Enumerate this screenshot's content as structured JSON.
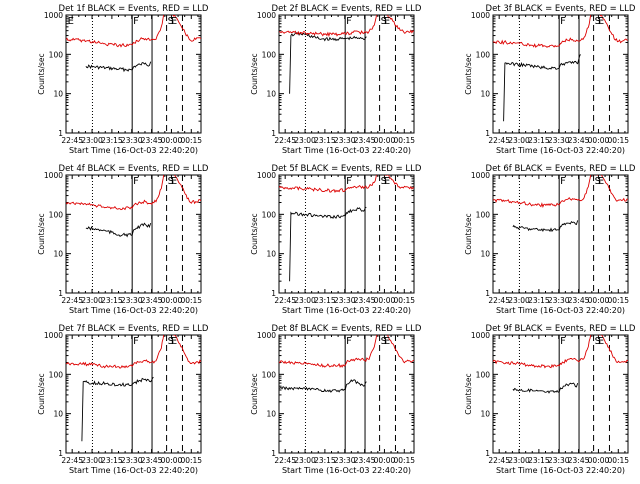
{
  "colors": {
    "events": "#000000",
    "lld": "#dd0000",
    "axis": "#000000",
    "background": "#ffffff"
  },
  "common": {
    "xlabel": "Start Time (16-Oct-03 22:40:20)",
    "ylabel": "Counts/sec",
    "xtick_labels": [
      "22:45",
      "23:00",
      "23:15",
      "23:30",
      "23:45",
      "00:00",
      "00:15"
    ],
    "ytick_labels": [
      "1",
      "10",
      "100",
      "1000"
    ]
  },
  "chart_data": [
    {
      "type": "line",
      "title": "Det 1f BLACK = Events, RED = LLD",
      "x_unit": "minutes since 22:40:20",
      "y_scale": "log",
      "ylim": [
        1,
        1000
      ],
      "xlim": [
        0,
        102
      ],
      "markers": [
        {
          "label": "E",
          "x": 0.5
        },
        {
          "label": "F",
          "x": 50
        },
        {
          "label": "S",
          "x": 76
        },
        {
          "label": "E",
          "x": 78.5
        }
      ],
      "solid_lines_x": [
        50,
        65
      ],
      "dotted_lines_x": [
        20
      ],
      "dashed_lines_x": [
        76,
        88
      ],
      "series": [
        {
          "name": "BLACK = Events",
          "x": [
            15,
            20,
            30,
            40,
            50,
            51,
            56,
            60,
            63,
            64
          ],
          "y": [
            50,
            48,
            45,
            42,
            40,
            48,
            55,
            60,
            52,
            65
          ]
        },
        {
          "name": "RED = LLD",
          "x": [
            0,
            10,
            20,
            30,
            40,
            50,
            51,
            56,
            60,
            64,
            68,
            72,
            74,
            78,
            82,
            86,
            90,
            94,
            98,
            102
          ],
          "y": [
            240,
            230,
            210,
            180,
            170,
            175,
            200,
            240,
            250,
            230,
            240,
            500,
            1100,
            1100,
            1000,
            600,
            350,
            230,
            240,
            250
          ]
        }
      ]
    },
    {
      "type": "line",
      "title": "Det 2f BLACK = Events, RED = LLD",
      "x_unit": "minutes since 22:40:20",
      "y_scale": "log",
      "ylim": [
        1,
        1000
      ],
      "xlim": [
        0,
        102
      ],
      "markers": [
        {
          "label": "F",
          "x": 50
        },
        {
          "label": "S",
          "x": 76
        },
        {
          "label": "E",
          "x": 78.5
        }
      ],
      "solid_lines_x": [
        50,
        65
      ],
      "dotted_lines_x": [
        20
      ],
      "dashed_lines_x": [
        76,
        88
      ],
      "series": [
        {
          "name": "BLACK = Events",
          "x": [
            8,
            9,
            12,
            20,
            30,
            40,
            50,
            56,
            60,
            64,
            66
          ],
          "y": [
            10,
            300,
            330,
            320,
            250,
            240,
            250,
            260,
            260,
            240,
            280
          ]
        },
        {
          "name": "RED = LLD",
          "x": [
            0,
            10,
            20,
            30,
            40,
            50,
            56,
            60,
            64,
            68,
            72,
            74,
            78,
            82,
            86,
            90,
            94,
            98,
            102
          ],
          "y": [
            370,
            360,
            350,
            330,
            320,
            330,
            360,
            380,
            340,
            380,
            550,
            1100,
            1100,
            1000,
            700,
            450,
            380,
            370,
            380
          ]
        }
      ]
    },
    {
      "type": "line",
      "title": "Det 3f BLACK = Events, RED = LLD",
      "x_unit": "minutes since 22:40:20",
      "y_scale": "log",
      "ylim": [
        1,
        1000
      ],
      "xlim": [
        0,
        102
      ],
      "markers": [
        {
          "label": "F",
          "x": 50
        },
        {
          "label": "S",
          "x": 76
        },
        {
          "label": "E",
          "x": 78.5
        }
      ],
      "solid_lines_x": [
        50,
        65
      ],
      "dotted_lines_x": [
        20
      ],
      "dashed_lines_x": [
        76,
        88
      ],
      "series": [
        {
          "name": "BLACK = Events",
          "x": [
            8,
            9,
            12,
            20,
            30,
            40,
            50,
            51,
            56,
            60,
            64,
            66
          ],
          "y": [
            2,
            60,
            58,
            55,
            50,
            45,
            45,
            55,
            60,
            65,
            58,
            100
          ]
        },
        {
          "name": "RED = LLD",
          "x": [
            0,
            10,
            20,
            30,
            40,
            50,
            51,
            56,
            60,
            64,
            68,
            72,
            74,
            78,
            82,
            86,
            90,
            94,
            98,
            102
          ],
          "y": [
            210,
            200,
            190,
            170,
            160,
            165,
            190,
            230,
            240,
            220,
            240,
            480,
            1100,
            1100,
            1000,
            600,
            320,
            210,
            220,
            230
          ]
        }
      ]
    },
    {
      "type": "line",
      "title": "Det 4f BLACK = Events, RED = LLD",
      "x_unit": "minutes since 22:40:20",
      "y_scale": "log",
      "ylim": [
        1,
        1000
      ],
      "xlim": [
        0,
        102
      ],
      "markers": [
        {
          "label": "F",
          "x": 50
        },
        {
          "label": "S",
          "x": 76
        },
        {
          "label": "E",
          "x": 78.5
        }
      ],
      "solid_lines_x": [
        50,
        65
      ],
      "dotted_lines_x": [
        20
      ],
      "dashed_lines_x": [
        76,
        88
      ],
      "series": [
        {
          "name": "BLACK = Events",
          "x": [
            15,
            20,
            30,
            40,
            50,
            51,
            56,
            60,
            63,
            64
          ],
          "y": [
            45,
            43,
            38,
            30,
            30,
            40,
            50,
            55,
            48,
            60
          ]
        },
        {
          "name": "RED = LLD",
          "x": [
            0,
            10,
            20,
            30,
            40,
            50,
            51,
            56,
            60,
            64,
            68,
            72,
            74,
            78,
            82,
            86,
            90,
            94,
            98,
            102
          ],
          "y": [
            200,
            190,
            175,
            150,
            140,
            145,
            170,
            200,
            210,
            190,
            210,
            450,
            1100,
            1100,
            1000,
            600,
            330,
            200,
            210,
            220
          ]
        }
      ]
    },
    {
      "type": "line",
      "title": "Det 5f BLACK = Events, RED = LLD",
      "x_unit": "minutes since 22:40:20",
      "y_scale": "log",
      "ylim": [
        1,
        1000
      ],
      "xlim": [
        0,
        102
      ],
      "markers": [
        {
          "label": "F",
          "x": 50
        },
        {
          "label": "S",
          "x": 76
        },
        {
          "label": "E",
          "x": 78.5
        }
      ],
      "solid_lines_x": [
        50,
        65
      ],
      "dotted_lines_x": [
        20
      ],
      "dashed_lines_x": [
        76,
        88
      ],
      "series": [
        {
          "name": "BLACK = Events",
          "x": [
            8,
            9,
            12,
            20,
            30,
            40,
            50,
            51,
            56,
            60,
            64,
            66
          ],
          "y": [
            2,
            110,
            105,
            100,
            90,
            85,
            90,
            110,
            130,
            140,
            120,
            150
          ]
        },
        {
          "name": "RED = LLD",
          "x": [
            0,
            10,
            20,
            30,
            40,
            50,
            51,
            56,
            60,
            64,
            68,
            72,
            74,
            78,
            82,
            86,
            90,
            94,
            98,
            102
          ],
          "y": [
            480,
            470,
            450,
            420,
            400,
            410,
            440,
            480,
            500,
            460,
            500,
            650,
            1100,
            1100,
            1000,
            750,
            500,
            470,
            480,
            490
          ]
        }
      ]
    },
    {
      "type": "line",
      "title": "Det 6f BLACK = Events, RED = LLD",
      "x_unit": "minutes since 22:40:20",
      "y_scale": "log",
      "ylim": [
        1,
        1000
      ],
      "xlim": [
        0,
        102
      ],
      "markers": [
        {
          "label": "F",
          "x": 50
        },
        {
          "label": "S",
          "x": 76
        },
        {
          "label": "E",
          "x": 78.5
        }
      ],
      "solid_lines_x": [
        50,
        65
      ],
      "dotted_lines_x": [
        20
      ],
      "dashed_lines_x": [
        76,
        88
      ],
      "series": [
        {
          "name": "BLACK = Events",
          "x": [
            15,
            20,
            30,
            40,
            50,
            51,
            56,
            60,
            63,
            64
          ],
          "y": [
            48,
            46,
            42,
            40,
            40,
            50,
            60,
            62,
            55,
            70
          ]
        },
        {
          "name": "RED = LLD",
          "x": [
            0,
            10,
            20,
            30,
            40,
            50,
            51,
            56,
            60,
            64,
            68,
            72,
            74,
            78,
            82,
            86,
            90,
            94,
            98,
            102
          ],
          "y": [
            230,
            220,
            200,
            175,
            170,
            175,
            200,
            240,
            250,
            230,
            240,
            500,
            1100,
            1100,
            1000,
            600,
            330,
            220,
            230,
            240
          ]
        }
      ]
    },
    {
      "type": "line",
      "title": "Det 7f BLACK = Events, RED = LLD",
      "x_unit": "minutes since 22:40:20",
      "y_scale": "log",
      "ylim": [
        1,
        1000
      ],
      "xlim": [
        0,
        102
      ],
      "markers": [
        {
          "label": "F",
          "x": 50
        },
        {
          "label": "S",
          "x": 76
        },
        {
          "label": "E",
          "x": 78.5
        }
      ],
      "solid_lines_x": [
        50,
        65
      ],
      "dotted_lines_x": [
        20
      ],
      "dashed_lines_x": [
        76,
        88
      ],
      "series": [
        {
          "name": "BLACK = Events",
          "x": [
            12,
            13,
            16,
            20,
            30,
            40,
            50,
            51,
            56,
            60,
            64,
            66
          ],
          "y": [
            2,
            65,
            62,
            60,
            58,
            55,
            55,
            60,
            70,
            75,
            65,
            85
          ]
        },
        {
          "name": "RED = LLD",
          "x": [
            0,
            10,
            20,
            30,
            40,
            50,
            51,
            56,
            60,
            64,
            68,
            72,
            74,
            78,
            82,
            86,
            90,
            94,
            98,
            102
          ],
          "y": [
            190,
            185,
            175,
            160,
            155,
            160,
            180,
            210,
            220,
            200,
            220,
            460,
            1100,
            1100,
            1000,
            600,
            320,
            190,
            200,
            210
          ]
        }
      ]
    },
    {
      "type": "line",
      "title": "Det 8f BLACK = Events, RED = LLD",
      "x_unit": "minutes since 22:40:20",
      "y_scale": "log",
      "ylim": [
        1,
        1000
      ],
      "xlim": [
        0,
        102
      ],
      "markers": [
        {
          "label": "F",
          "x": 50
        },
        {
          "label": "S",
          "x": 76
        },
        {
          "label": "E",
          "x": 78.5
        }
      ],
      "solid_lines_x": [
        50,
        65
      ],
      "dotted_lines_x": [
        20
      ],
      "dashed_lines_x": [
        76,
        88
      ],
      "series": [
        {
          "name": "BLACK = Events",
          "x": [
            0,
            10,
            20,
            30,
            40,
            50,
            51,
            56,
            60,
            64,
            66
          ],
          "y": [
            45,
            44,
            42,
            40,
            38,
            40,
            55,
            70,
            60,
            50,
            65
          ]
        },
        {
          "name": "RED = LLD",
          "x": [
            0,
            10,
            20,
            30,
            40,
            50,
            51,
            56,
            60,
            64,
            68,
            72,
            74,
            78,
            82,
            86,
            90,
            94,
            98,
            102
          ],
          "y": [
            210,
            200,
            190,
            170,
            165,
            170,
            200,
            240,
            250,
            230,
            240,
            500,
            1100,
            1100,
            1000,
            600,
            330,
            210,
            220,
            230
          ]
        }
      ]
    },
    {
      "type": "line",
      "title": "Det 9f BLACK = Events, RED = LLD",
      "x_unit": "minutes since 22:40:20",
      "y_scale": "log",
      "ylim": [
        1,
        1000
      ],
      "xlim": [
        0,
        102
      ],
      "markers": [
        {
          "label": "F",
          "x": 50
        },
        {
          "label": "S",
          "x": 76
        },
        {
          "label": "E",
          "x": 78.5
        }
      ],
      "solid_lines_x": [
        50,
        65
      ],
      "dotted_lines_x": [
        20
      ],
      "dashed_lines_x": [
        76,
        88
      ],
      "series": [
        {
          "name": "BLACK = Events",
          "x": [
            15,
            20,
            30,
            40,
            50,
            51,
            56,
            60,
            63,
            64
          ],
          "y": [
            42,
            40,
            38,
            35,
            36,
            45,
            55,
            58,
            48,
            60
          ]
        },
        {
          "name": "RED = LLD",
          "x": [
            0,
            10,
            20,
            30,
            40,
            50,
            51,
            56,
            60,
            64,
            68,
            72,
            74,
            78,
            82,
            86,
            90,
            94,
            98,
            102
          ],
          "y": [
            210,
            200,
            185,
            165,
            160,
            165,
            190,
            230,
            240,
            220,
            240,
            500,
            1100,
            1100,
            1000,
            600,
            320,
            200,
            210,
            220
          ]
        }
      ]
    }
  ]
}
